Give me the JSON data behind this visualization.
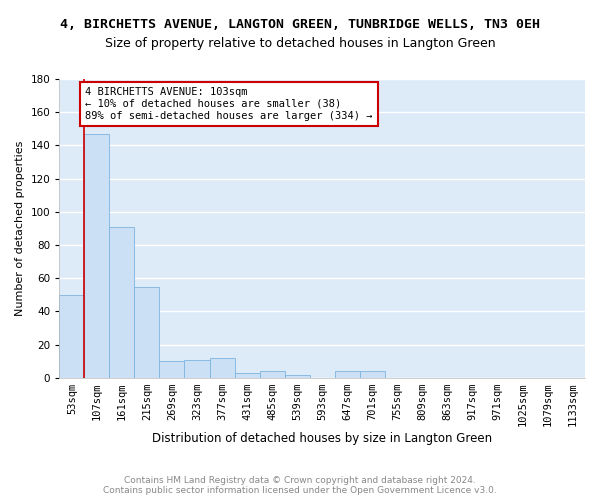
{
  "title": "4, BIRCHETTS AVENUE, LANGTON GREEN, TUNBRIDGE WELLS, TN3 0EH",
  "subtitle": "Size of property relative to detached houses in Langton Green",
  "xlabel": "Distribution of detached houses by size in Langton Green",
  "ylabel": "Number of detached properties",
  "bar_color": "#cce0f5",
  "bar_edge_color": "#7db4e0",
  "bg_color": "#ddeaf8",
  "grid_color": "#ffffff",
  "fig_bg_color": "#ffffff",
  "categories": [
    "53sqm",
    "107sqm",
    "161sqm",
    "215sqm",
    "269sqm",
    "323sqm",
    "377sqm",
    "431sqm",
    "485sqm",
    "539sqm",
    "593sqm",
    "647sqm",
    "701sqm",
    "755sqm",
    "809sqm",
    "863sqm",
    "917sqm",
    "971sqm",
    "1025sqm",
    "1079sqm",
    "1133sqm"
  ],
  "values": [
    50,
    147,
    91,
    55,
    10,
    11,
    12,
    3,
    4,
    2,
    0,
    4,
    4,
    0,
    0,
    0,
    0,
    0,
    0,
    0,
    0
  ],
  "ylim": [
    0,
    180
  ],
  "yticks": [
    0,
    20,
    40,
    60,
    80,
    100,
    120,
    140,
    160,
    180
  ],
  "property_line_color": "#cc0000",
  "annotation_line1": "4 BIRCHETTS AVENUE: 103sqm",
  "annotation_line2": "← 10% of detached houses are smaller (38)",
  "annotation_line3": "89% of semi-detached houses are larger (334) →",
  "annotation_box_color": "#ffffff",
  "annotation_box_edge": "#cc0000",
  "footer_line1": "Contains HM Land Registry data © Crown copyright and database right 2024.",
  "footer_line2": "Contains public sector information licensed under the Open Government Licence v3.0.",
  "title_fontsize": 9.5,
  "subtitle_fontsize": 9,
  "xlabel_fontsize": 8.5,
  "ylabel_fontsize": 8,
  "tick_fontsize": 7.5,
  "annotation_fontsize": 7.5,
  "footer_fontsize": 6.5
}
